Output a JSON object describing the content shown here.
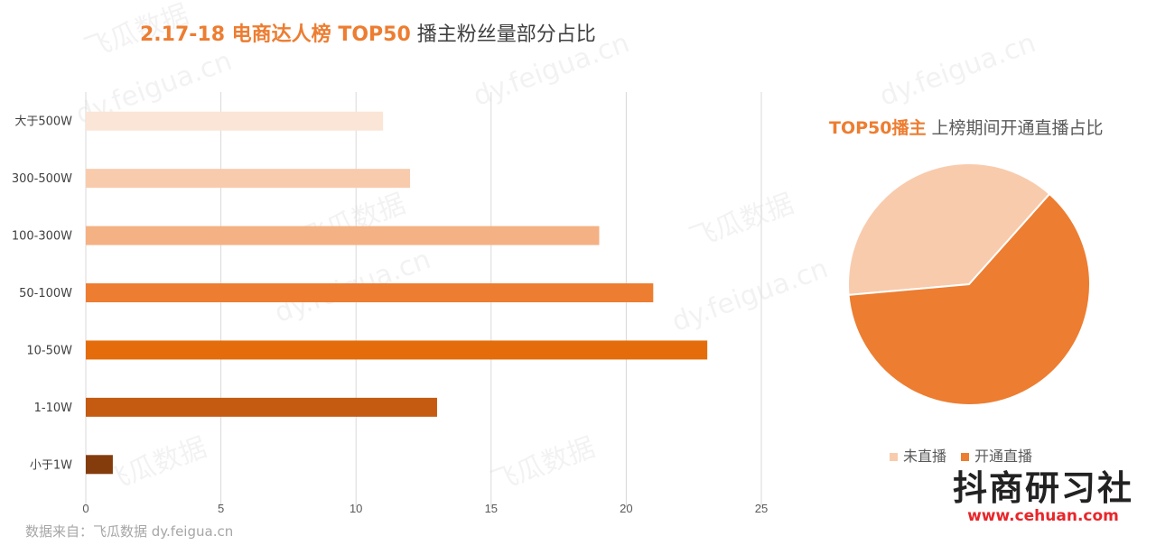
{
  "chart_data": [
    {
      "type": "bar",
      "orientation": "horizontal",
      "title_highlight": "2.17-18 电商达人榜 TOP50",
      "title_rest": "播主粉丝量部分占比",
      "categories": [
        "大于500W",
        "300-500W",
        "100-300W",
        "50-100W",
        "10-50W",
        "1-10W",
        "小于1W"
      ],
      "values": [
        11,
        12,
        19,
        21,
        23,
        13,
        1
      ],
      "colors": [
        "#fbe5d6",
        "#f8cbad",
        "#f4b183",
        "#ed7d31",
        "#e46c0a",
        "#c55a11",
        "#843c0c"
      ],
      "xlim": [
        0,
        25
      ],
      "xticks": [
        0,
        5,
        10,
        15,
        20,
        25
      ],
      "grid": true
    },
    {
      "type": "pie",
      "title_highlight": "TOP50播主",
      "title_rest": "上榜期间开通直播占比",
      "labels": [
        "未直播",
        "开通直播"
      ],
      "values": [
        38,
        62
      ],
      "colors": [
        "#f8cbad",
        "#ed7d31"
      ],
      "legend": "bottom"
    }
  ],
  "source": "数据来自：飞瓜数据  dy.feigua.cn",
  "logo": {
    "name": "抖商研习社",
    "url": "www.cehuan.com"
  },
  "watermark": [
    "飞瓜数据",
    "dy.feigua.cn"
  ]
}
